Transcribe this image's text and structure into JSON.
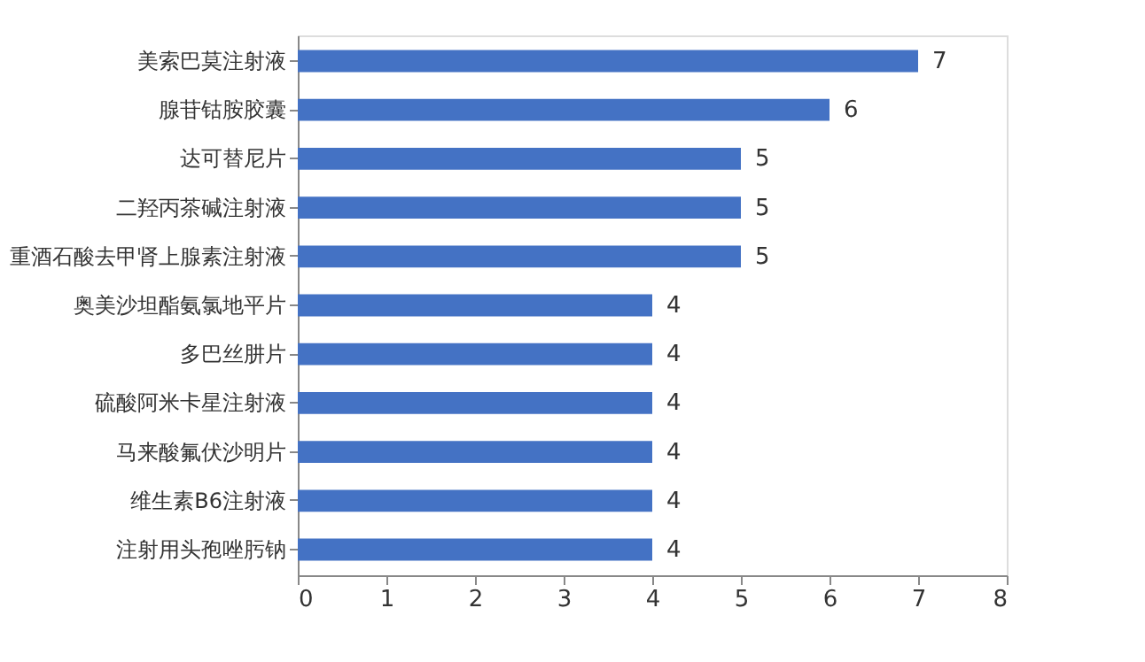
{
  "chart_data": {
    "type": "bar",
    "orientation": "horizontal",
    "categories": [
      "美索巴莫注射液",
      "腺苷钴胺胶囊",
      "达可替尼片",
      "二羟丙茶碱注射液",
      "重酒石酸去甲肾上腺素注射液",
      "奥美沙坦酯氨氯地平片",
      "多巴丝肼片",
      "硫酸阿米卡星注射液",
      "马来酸氟伏沙明片",
      "维生素B6注射液",
      "注射用头孢唑肟钠"
    ],
    "values": [
      7,
      6,
      5,
      5,
      5,
      4,
      4,
      4,
      4,
      4,
      4
    ],
    "color": "#4472c4",
    "xlim": [
      0,
      8
    ],
    "xticks": [
      0,
      1,
      2,
      3,
      4,
      5,
      6,
      7,
      8
    ],
    "data_labels": true,
    "grid": false
  }
}
